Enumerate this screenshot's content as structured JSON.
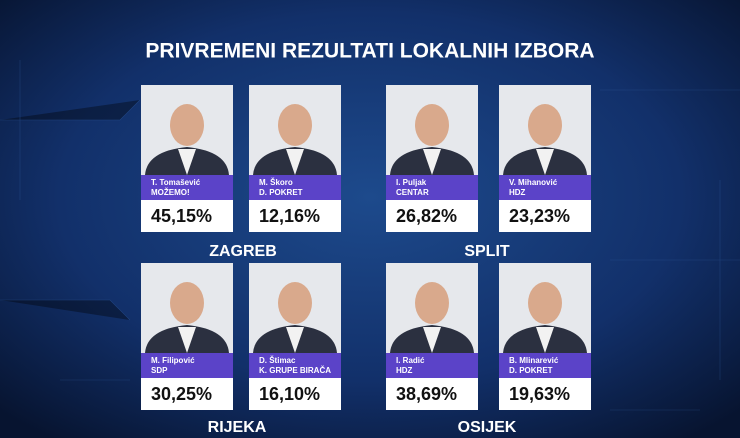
{
  "title": "PRIVREMENI REZULTATI LOKALNIH IZBORA",
  "cities": [
    {
      "name": "ZAGREB",
      "candidates": [
        {
          "name": "T. Tomašević",
          "party": "MOŽEMO!",
          "result": "45,15%"
        },
        {
          "name": "M. Škoro",
          "party": "D. POKRET",
          "result": "12,16%"
        }
      ]
    },
    {
      "name": "SPLIT",
      "candidates": [
        {
          "name": "I. Puljak",
          "party": "CENTAR",
          "result": "26,82%"
        },
        {
          "name": "V. Mihanović",
          "party": "HDZ",
          "result": "23,23%"
        }
      ]
    },
    {
      "name": "RIJEKA",
      "candidates": [
        {
          "name": "M. Filipović",
          "party": "SDP",
          "result": "30,25%"
        },
        {
          "name": "D. Štimac",
          "party": "K. GRUPE BIRAČA",
          "result": "16,10%"
        }
      ]
    },
    {
      "name": "OSIJEK",
      "candidates": [
        {
          "name": "I. Radić",
          "party": "HDZ",
          "result": "38,69%"
        },
        {
          "name": "B. Mlinarević",
          "party": "D. POKRET",
          "result": "19,63%"
        }
      ]
    }
  ]
}
